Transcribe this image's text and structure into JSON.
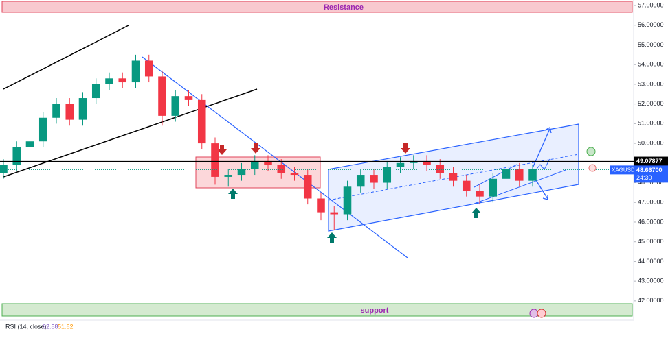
{
  "chart_data": {
    "type": "candlestick",
    "annotations": {
      "resistance": "Resistance",
      "support": "support"
    },
    "symbol": "XAGUSD",
    "countdown": "24:30",
    "price_line": {
      "value": 49.07877,
      "label": "49.07877"
    },
    "last_price": {
      "value": 48.667,
      "label": "48.66700"
    },
    "indicator": {
      "name": "RSI (14, close)",
      "values": [
        62.88,
        51.62
      ],
      "colors": [
        "#7e57c2",
        "#ff9800"
      ]
    },
    "up_color": "#089981",
    "down_color": "#f23645",
    "categories": [
      null,
      null,
      null,
      null,
      null,
      null,
      null,
      null,
      null,
      null,
      null,
      null,
      null,
      null,
      null,
      null,
      null,
      null,
      null,
      null,
      null,
      null,
      null,
      null,
      null,
      null,
      null,
      null,
      null,
      null,
      null,
      null,
      null,
      null,
      null,
      null,
      null,
      null,
      null,
      null,
      null
    ],
    "open": [
      48.5,
      48.9,
      49.8,
      50.1,
      51.3,
      52.0,
      51.2,
      52.3,
      53.0,
      53.3,
      53.1,
      54.2,
      53.4,
      51.4,
      52.4,
      52.2,
      50.0,
      48.3,
      48.4,
      48.7,
      49.1,
      48.9,
      48.5,
      48.4,
      47.2,
      46.5,
      46.4,
      47.8,
      48.4,
      48.0,
      48.8,
      49.0,
      49.1,
      48.9,
      48.5,
      48.1,
      47.6,
      47.3,
      48.2,
      48.7,
      48.1
    ],
    "high": [
      49.2,
      50.1,
      50.4,
      51.6,
      52.3,
      52.3,
      52.6,
      53.3,
      53.6,
      53.6,
      54.5,
      54.5,
      53.7,
      52.7,
      52.7,
      52.5,
      50.3,
      48.7,
      49.0,
      49.4,
      49.4,
      49.2,
      48.8,
      48.7,
      47.5,
      46.8,
      48.1,
      48.7,
      48.7,
      49.1,
      49.3,
      49.4,
      49.4,
      49.2,
      48.8,
      48.4,
      47.9,
      48.5,
      49.0,
      49.0,
      48.9
    ],
    "low": [
      48.2,
      48.6,
      49.5,
      49.8,
      51.0,
      50.9,
      50.9,
      52.0,
      52.7,
      52.8,
      52.8,
      53.1,
      50.9,
      51.1,
      51.9,
      49.7,
      47.9,
      47.8,
      48.1,
      48.4,
      48.6,
      48.2,
      48.1,
      46.9,
      46.1,
      45.6,
      46.1,
      47.5,
      47.7,
      47.7,
      48.5,
      48.7,
      48.6,
      48.2,
      47.8,
      47.3,
      46.9,
      47.0,
      47.9,
      47.8,
      47.8
    ],
    "close": [
      48.9,
      49.8,
      50.1,
      51.3,
      52.0,
      51.2,
      52.3,
      53.0,
      53.3,
      53.1,
      54.2,
      53.4,
      51.4,
      52.4,
      52.2,
      50.0,
      48.3,
      48.4,
      48.7,
      49.1,
      48.9,
      48.5,
      48.4,
      47.2,
      46.5,
      46.4,
      47.8,
      48.4,
      48.0,
      48.8,
      49.0,
      49.1,
      48.9,
      48.5,
      48.1,
      47.6,
      47.3,
      48.2,
      48.7,
      48.1,
      48.7
    ],
    "ylim": [
      41.09,
      57.28
    ],
    "yticks": [
      {
        "value": 42,
        "label": "42.00000"
      },
      {
        "value": 43,
        "label": "43.00000"
      },
      {
        "value": 44,
        "label": "44.00000"
      },
      {
        "value": 45,
        "label": "45.00000"
      },
      {
        "value": 46,
        "label": "46.00000"
      },
      {
        "value": 47,
        "label": "47.00000"
      },
      {
        "value": 48,
        "label": "48.00000"
      },
      {
        "value": 49,
        "label": "49.00000"
      },
      {
        "value": 50,
        "label": "50.00000"
      },
      {
        "value": 51,
        "label": "51.00000"
      },
      {
        "value": 52,
        "label": "52.00000"
      },
      {
        "value": 53,
        "label": "53.00000"
      },
      {
        "value": 54,
        "label": "54.00000"
      },
      {
        "value": 55,
        "label": "55.00000"
      },
      {
        "value": 56,
        "label": "56.00000"
      },
      {
        "value": 57,
        "label": "57.00000"
      }
    ]
  }
}
